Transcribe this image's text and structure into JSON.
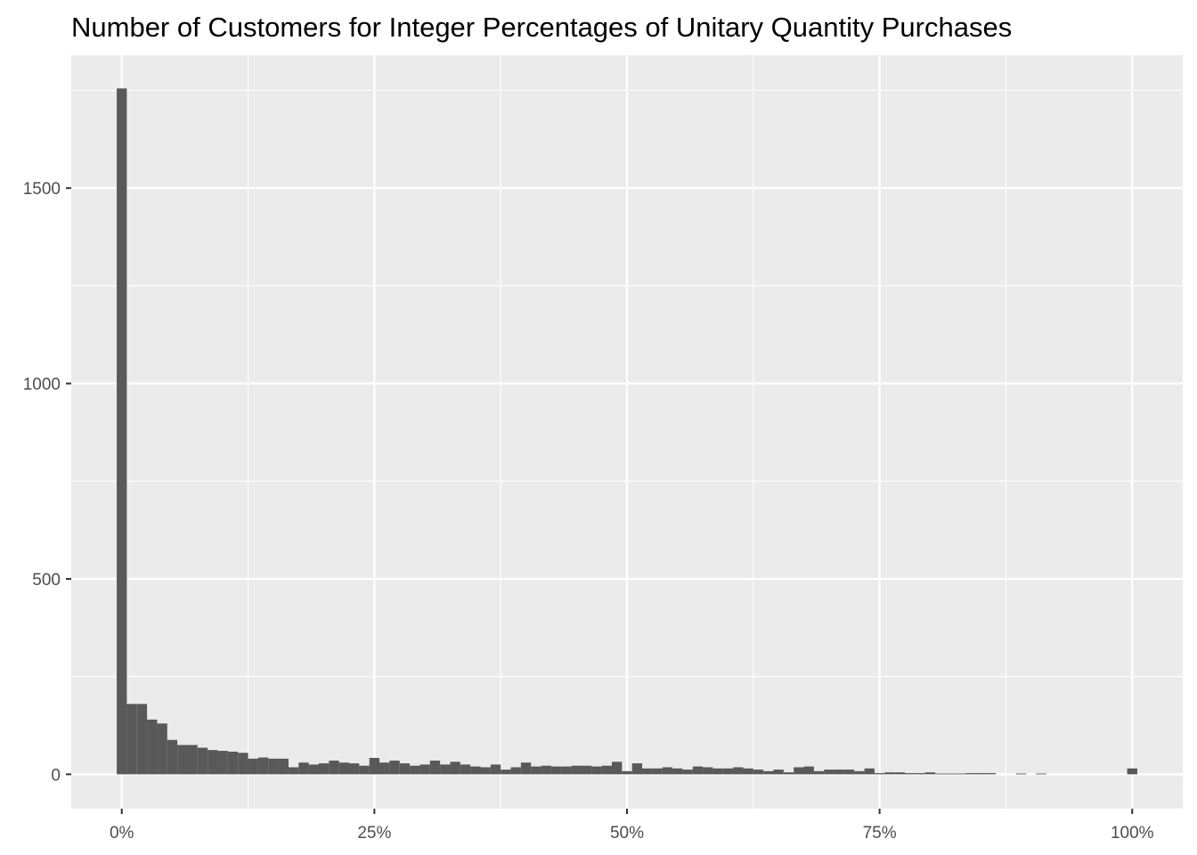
{
  "chart_data": {
    "type": "bar",
    "title": "Number of Customers for Integer Percentages of Unitary Quantity Purchases",
    "xlabel": "",
    "ylabel": "",
    "x_ticks": [
      {
        "value": 0,
        "label": "0%"
      },
      {
        "value": 25,
        "label": "25%"
      },
      {
        "value": 50,
        "label": "50%"
      },
      {
        "value": 75,
        "label": "75%"
      },
      {
        "value": 100,
        "label": "100%"
      }
    ],
    "y_ticks": [
      {
        "value": 0,
        "label": "0"
      },
      {
        "value": 500,
        "label": "500"
      },
      {
        "value": 1000,
        "label": "1000"
      },
      {
        "value": 1500,
        "label": "1500"
      }
    ],
    "xlim": [
      -5,
      105
    ],
    "ylim": [
      -88,
      1840
    ],
    "grid": true,
    "bar_color": "#595959",
    "panel_background": "#ebebeb",
    "x": [
      0,
      1,
      2,
      3,
      4,
      5,
      6,
      7,
      8,
      9,
      10,
      11,
      12,
      13,
      14,
      15,
      16,
      17,
      18,
      19,
      20,
      21,
      22,
      23,
      24,
      25,
      26,
      27,
      28,
      29,
      30,
      31,
      32,
      33,
      34,
      35,
      36,
      37,
      38,
      39,
      40,
      41,
      42,
      43,
      44,
      45,
      46,
      47,
      48,
      49,
      50,
      51,
      52,
      53,
      54,
      55,
      56,
      57,
      58,
      59,
      60,
      61,
      62,
      63,
      64,
      65,
      66,
      67,
      68,
      69,
      70,
      71,
      72,
      73,
      74,
      75,
      76,
      77,
      78,
      79,
      80,
      81,
      82,
      83,
      84,
      85,
      86,
      87,
      88,
      89,
      90,
      91,
      92,
      93,
      94,
      95,
      96,
      97,
      98,
      99,
      100
    ],
    "values": [
      1755,
      180,
      180,
      140,
      130,
      88,
      75,
      75,
      68,
      62,
      60,
      58,
      55,
      40,
      43,
      40,
      40,
      18,
      30,
      25,
      28,
      35,
      30,
      28,
      22,
      42,
      30,
      35,
      28,
      22,
      25,
      35,
      25,
      32,
      25,
      20,
      18,
      25,
      12,
      18,
      30,
      20,
      22,
      20,
      20,
      22,
      22,
      20,
      22,
      32,
      8,
      28,
      15,
      15,
      18,
      15,
      12,
      20,
      18,
      15,
      15,
      18,
      15,
      12,
      8,
      12,
      5,
      18,
      20,
      8,
      12,
      12,
      12,
      8,
      15,
      3,
      5,
      5,
      3,
      3,
      5,
      2,
      2,
      2,
      3,
      3,
      3,
      0,
      0,
      2,
      0,
      2,
      0,
      0,
      0,
      0,
      0,
      0,
      0,
      0,
      15
    ]
  }
}
